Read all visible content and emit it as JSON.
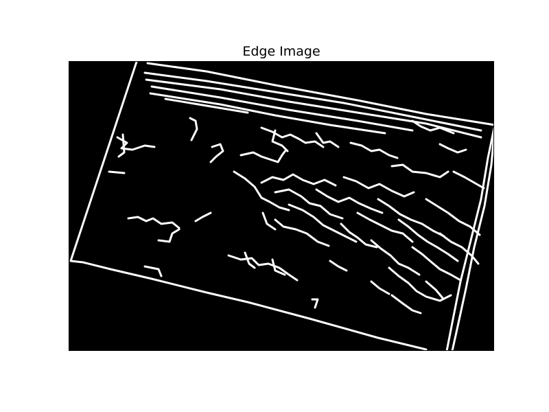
{
  "figure": {
    "title": "Edge Image"
  },
  "image": {
    "kind": "binary-edge-map",
    "background_color": "#000000",
    "edge_color": "#ffffff"
  }
}
